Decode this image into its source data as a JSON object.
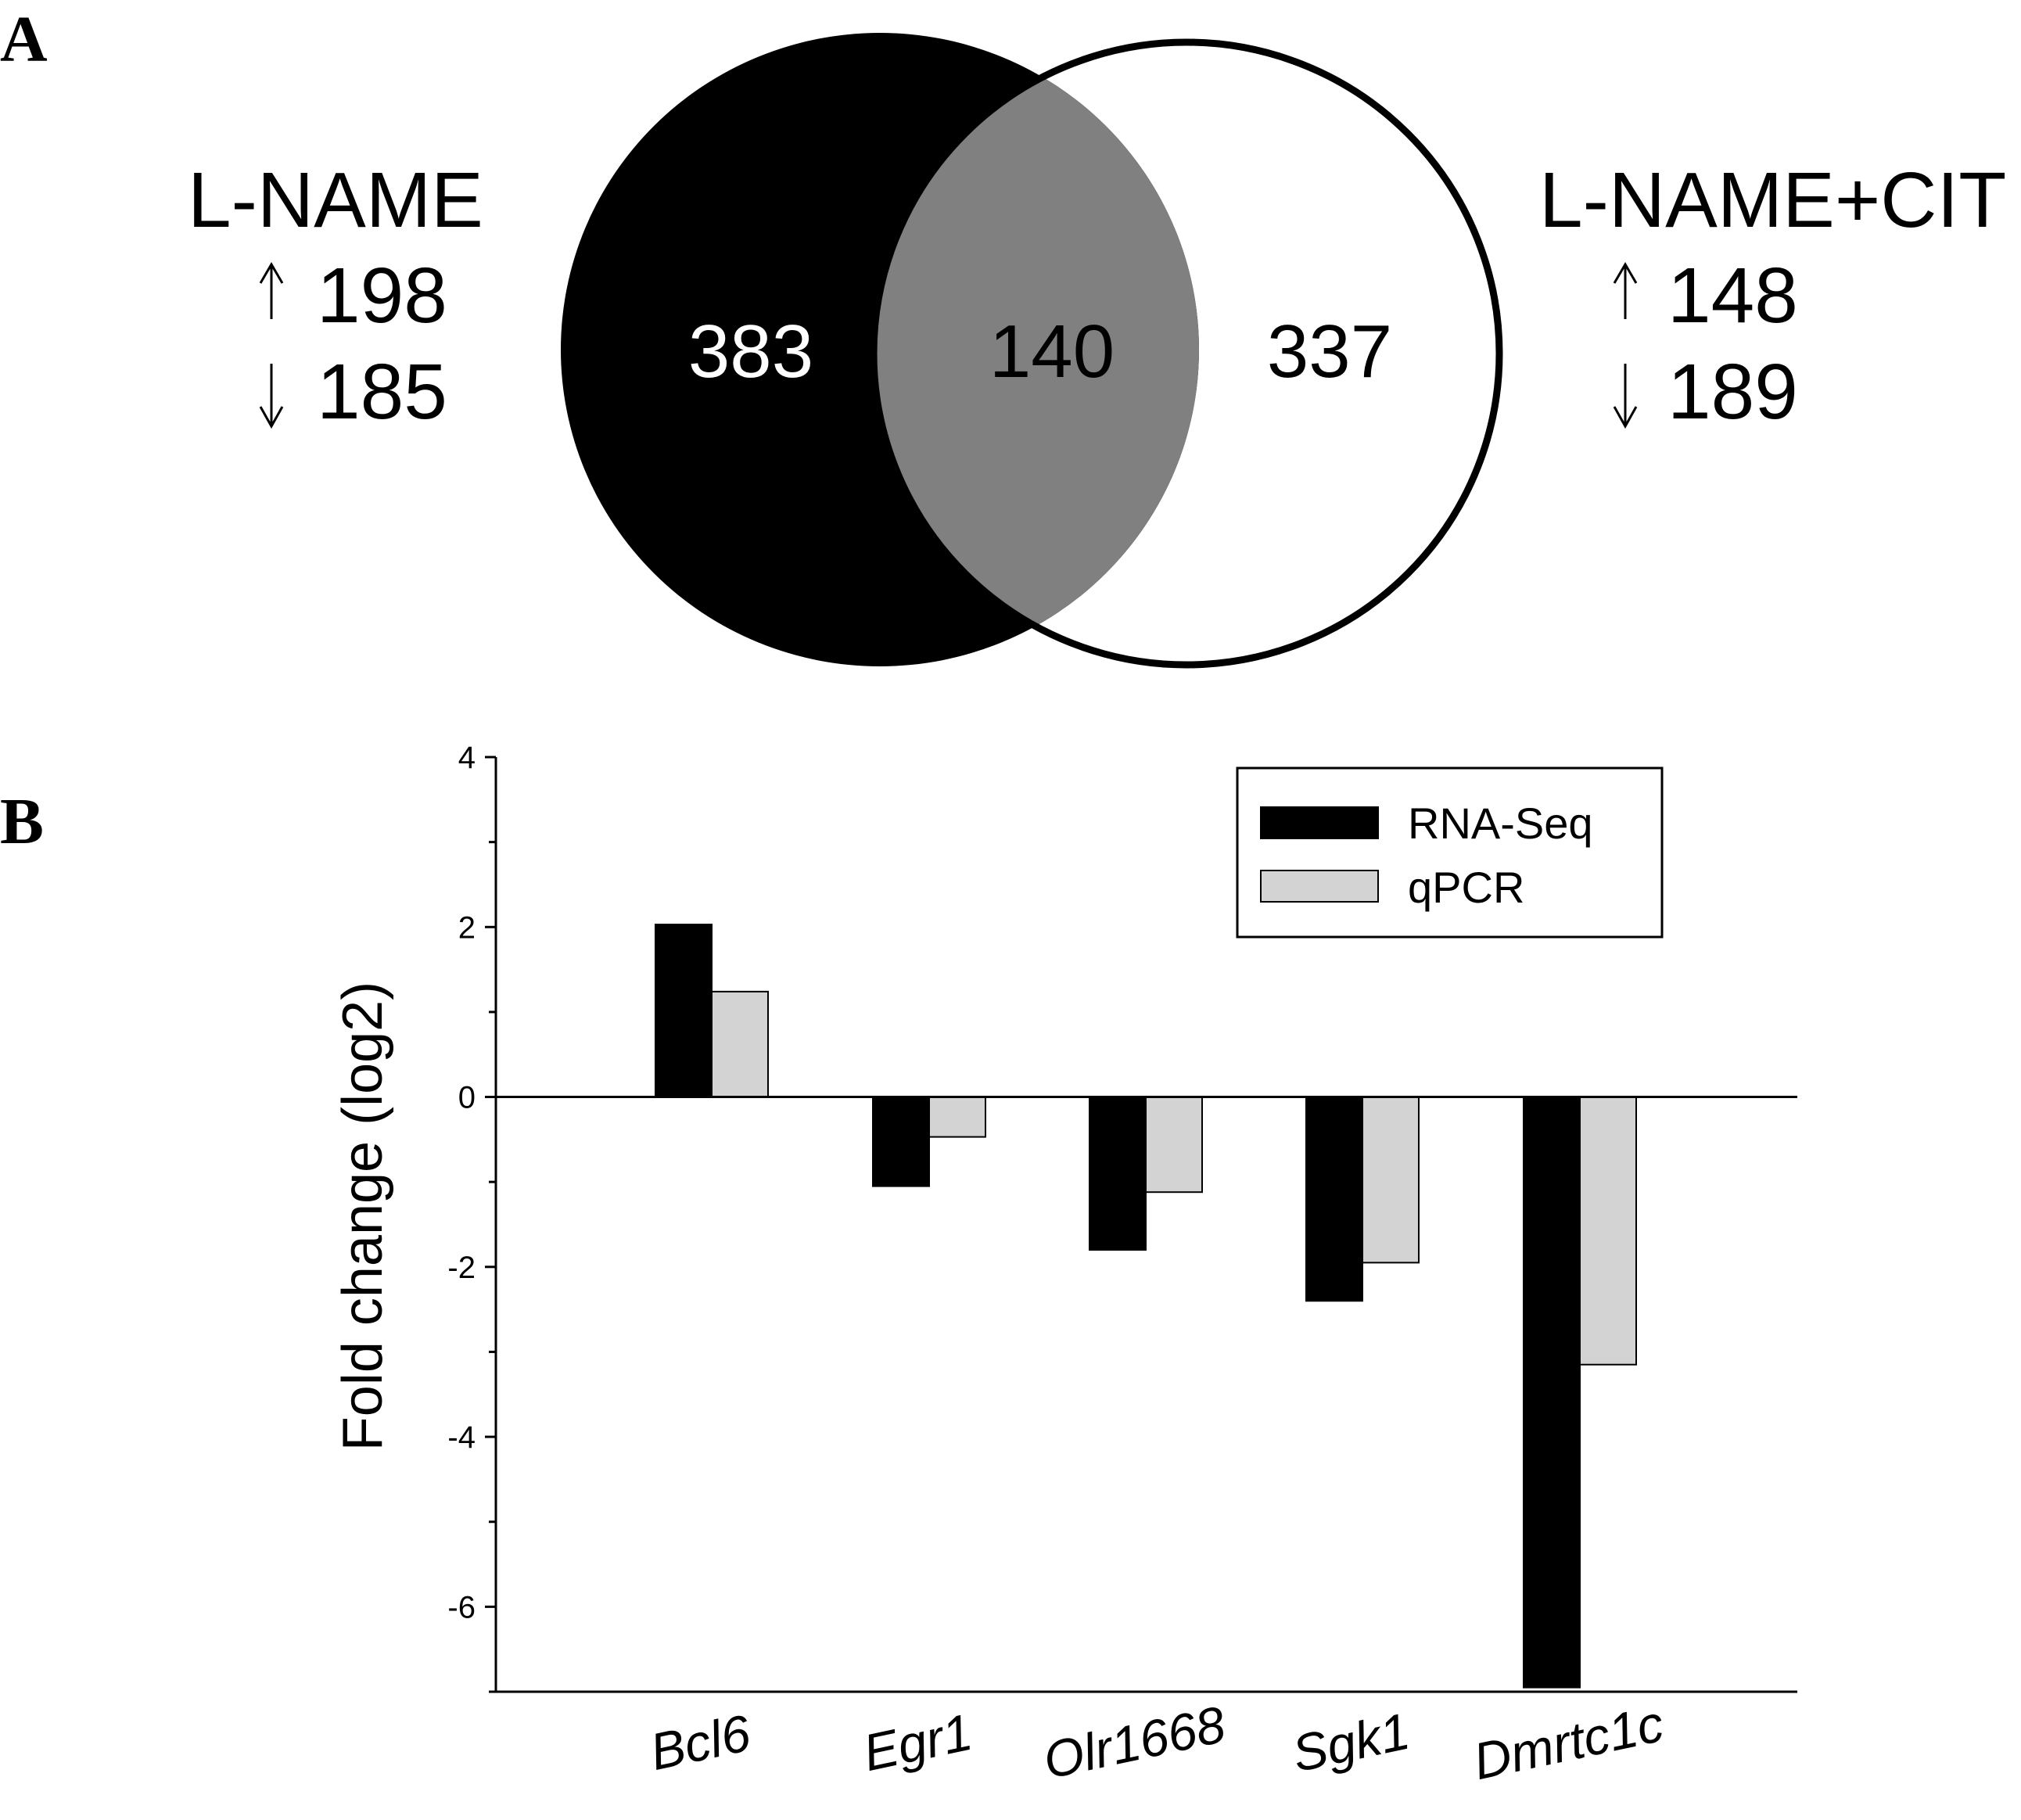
{
  "panel_a": {
    "label": "A",
    "left_group": {
      "title": "L-NAME",
      "up": "198",
      "down": "185"
    },
    "right_group": {
      "title": "L-NAME+CIT",
      "up": "148",
      "down": "189"
    },
    "venn": {
      "left_only": "383",
      "overlap": "140",
      "right_only": "337"
    },
    "colors": {
      "left": "#000000",
      "overlap": "#808080",
      "right": "#ffffff"
    }
  },
  "panel_b": {
    "label": "B"
  },
  "chart_data": {
    "type": "bar",
    "title": "",
    "xlabel": "",
    "ylabel": "Fold change (log2)",
    "ylim": [
      -7,
      4
    ],
    "yticks": [
      "4",
      "2",
      "0",
      "-2",
      "-4",
      "-6"
    ],
    "categories": [
      "Bcl6",
      "Egr1",
      "Olr1668",
      "Sgk1",
      "Dmrtc1c"
    ],
    "series": [
      {
        "name": "RNA-Seq",
        "color": "#000000",
        "values": [
          2.03,
          -1.05,
          -1.8,
          -2.4,
          -6.95
        ]
      },
      {
        "name": "qPCR",
        "color": "#d3d3d3",
        "values": [
          1.24,
          -0.47,
          -1.12,
          -1.95,
          -3.15
        ]
      }
    ],
    "legend": "top-right",
    "grid": false
  }
}
